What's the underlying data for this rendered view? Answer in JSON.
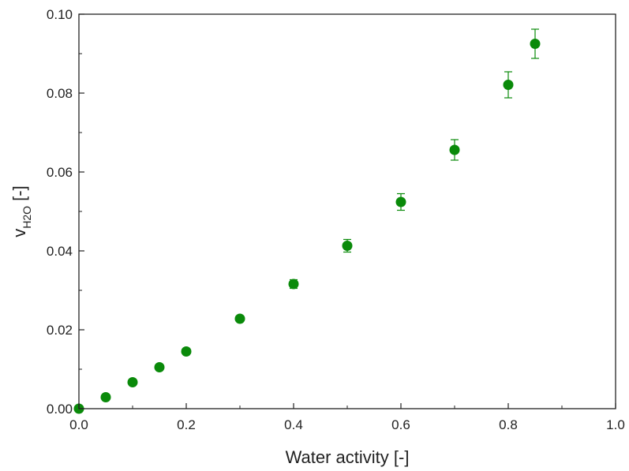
{
  "chart_data": {
    "type": "scatter",
    "xlabel": "Water activity [-]",
    "ylabel": {
      "main": "v",
      "subscript": "H2O",
      "suffix": " [-]"
    },
    "xlim": [
      0.0,
      1.0
    ],
    "ylim": [
      0.0,
      0.1
    ],
    "x_ticks": [
      0.0,
      0.2,
      0.4,
      0.6,
      0.8,
      1.0
    ],
    "x_tick_labels": [
      "0.0",
      "0.2",
      "0.4",
      "0.6",
      "0.8",
      "1.0"
    ],
    "y_ticks": [
      0.0,
      0.02,
      0.04,
      0.06,
      0.08,
      0.1
    ],
    "y_tick_labels": [
      "0.00",
      "0.02",
      "0.04",
      "0.06",
      "0.08",
      "0.10"
    ],
    "grid": false,
    "legend": "none",
    "series": [
      {
        "color": "#0a8a0a",
        "points": [
          {
            "x": 0.0,
            "y": 0.0,
            "err": 0.0
          },
          {
            "x": 0.05,
            "y": 0.0029,
            "err": 0.0003
          },
          {
            "x": 0.1,
            "y": 0.0067,
            "err": 0.0004
          },
          {
            "x": 0.15,
            "y": 0.0105,
            "err": 0.0004
          },
          {
            "x": 0.2,
            "y": 0.0145,
            "err": 0.0005
          },
          {
            "x": 0.3,
            "y": 0.0228,
            "err": 0.0006
          },
          {
            "x": 0.4,
            "y": 0.0316,
            "err": 0.0011
          },
          {
            "x": 0.5,
            "y": 0.0413,
            "err": 0.0016
          },
          {
            "x": 0.6,
            "y": 0.0524,
            "err": 0.0021
          },
          {
            "x": 0.7,
            "y": 0.0656,
            "err": 0.0026
          },
          {
            "x": 0.8,
            "y": 0.0821,
            "err": 0.0033
          },
          {
            "x": 0.85,
            "y": 0.0925,
            "err": 0.0037
          }
        ]
      }
    ]
  }
}
